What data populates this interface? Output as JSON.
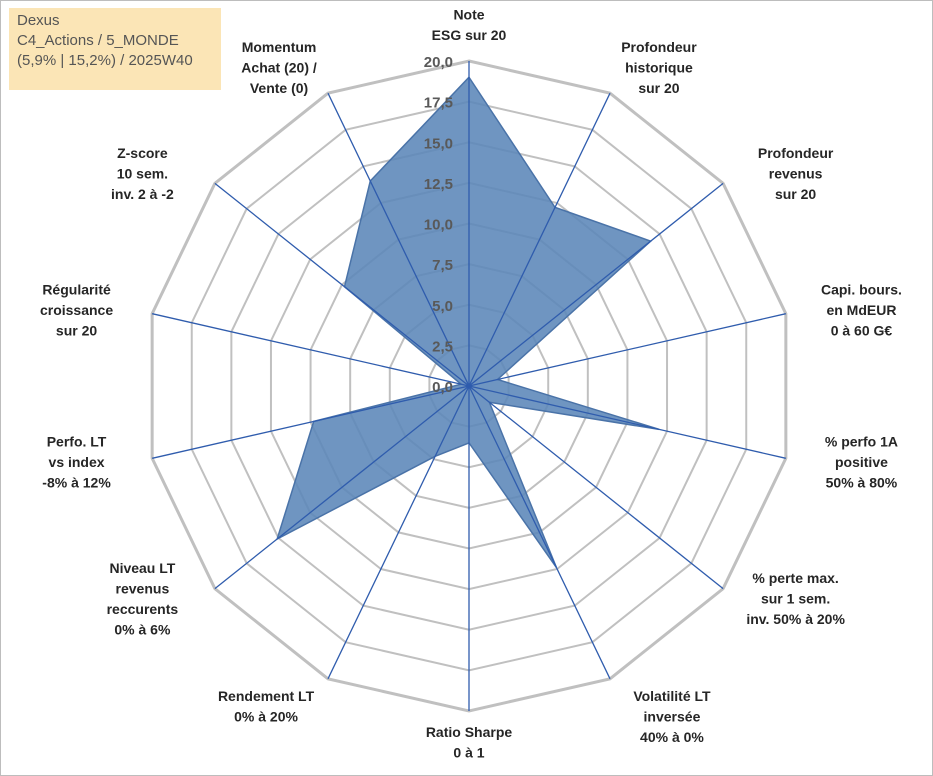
{
  "info_box": {
    "line1": "Dexus",
    "line2": "C4_Actions / 5_MONDE",
    "line3": "(5,9% | 15,2%) / 2025W40"
  },
  "colors": {
    "area_fill": "#5b86b8",
    "area_stroke": "#4a73a8",
    "spoke": "#2f5cad",
    "grid": "#c0c0c0",
    "info_bg": "#fbe5b6"
  },
  "chart_data": {
    "type": "radar",
    "title": "",
    "range": [
      0,
      20
    ],
    "tick_step": 2.5,
    "tick_labels": [
      "0,0",
      "2,5",
      "5,0",
      "7,5",
      "10,0",
      "12,5",
      "15,0",
      "17,5",
      "20,0"
    ],
    "axes": [
      {
        "label": [
          "Note",
          "ESG sur 20"
        ],
        "value": 19.0
      },
      {
        "label": [
          "Profondeur",
          "historique",
          "sur 20"
        ],
        "value": 12.2
      },
      {
        "label": [
          "Profondeur",
          "revenus",
          "sur 20"
        ],
        "value": 14.3
      },
      {
        "label": [
          "Capi. bours.",
          "en MdEUR",
          "0 à 60 G€"
        ],
        "value": 1.8
      },
      {
        "label": [
          "% perfo 1A",
          "positive",
          "50% à 80%"
        ],
        "value": 12.0
      },
      {
        "label": [
          "% perte max.",
          "sur 1 sem.",
          "inv. 50% à 20%"
        ],
        "value": 1.6
      },
      {
        "label": [
          "Volatilité LT",
          "inversée",
          "40% à 0%"
        ],
        "value": 12.4
      },
      {
        "label": [
          "Ratio Sharpe",
          "0 à 1"
        ],
        "value": 3.5
      },
      {
        "label": [
          "Rendement LT",
          "0% à 20%"
        ],
        "value": 4.8
      },
      {
        "label": [
          "Niveau LT",
          "revenus",
          "reccurents",
          "0% à 6%"
        ],
        "value": 15.1
      },
      {
        "label": [
          "Perfo. LT",
          "vs index",
          "-8% à 12%"
        ],
        "value": 9.8
      },
      {
        "label": [
          "Régularité",
          "croissance",
          "sur 20"
        ],
        "value": 0.5
      },
      {
        "label": [
          "Z-score",
          "10 sem.",
          "inv. 2 à -2"
        ],
        "value": 9.8
      },
      {
        "label": [
          "Momentum",
          "Achat (20) /",
          "Vente (0)"
        ],
        "value": 14.0
      }
    ]
  }
}
